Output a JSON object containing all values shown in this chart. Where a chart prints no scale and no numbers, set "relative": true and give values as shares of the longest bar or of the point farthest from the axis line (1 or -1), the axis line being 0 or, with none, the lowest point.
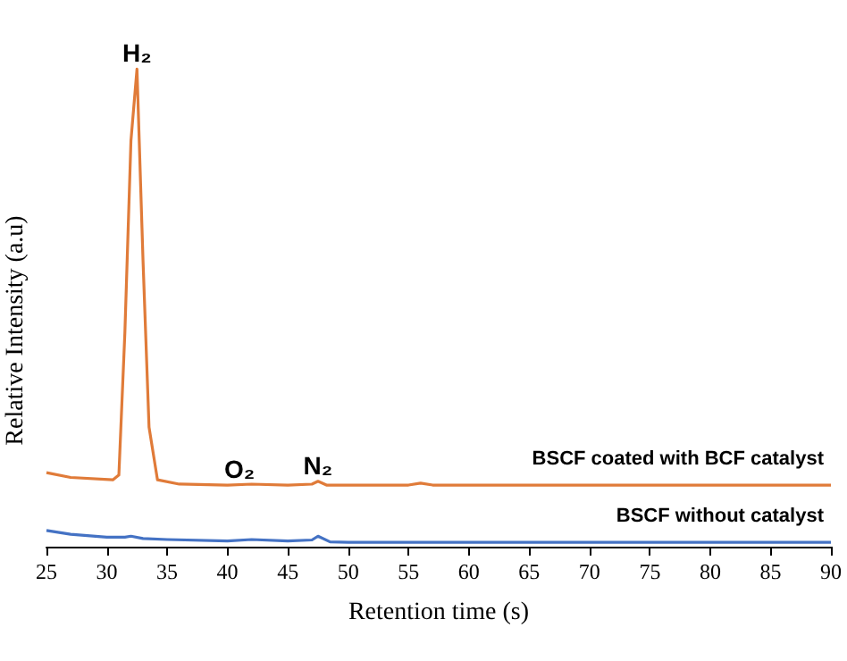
{
  "chart_data": {
    "type": "line",
    "xlabel": "Retention time (s)",
    "ylabel": "Relative Intensity (a.u)",
    "relative": true,
    "legend": false,
    "marker": "none",
    "xlim": [
      25,
      90
    ],
    "xticks": [
      25,
      30,
      35,
      40,
      45,
      50,
      55,
      60,
      65,
      70,
      75,
      80,
      85,
      90
    ],
    "series": [
      {
        "name": "BSCF coated with BCF catalyst",
        "color": "#e07b39",
        "x": [
          25,
          27,
          30.5,
          31,
          31.5,
          32,
          32.5,
          33,
          33.5,
          34.2,
          36,
          40,
          42,
          45,
          47,
          47.5,
          48.2,
          50,
          55,
          56,
          57,
          60,
          70,
          80,
          90
        ],
        "values": [
          0.155,
          0.145,
          0.14,
          0.15,
          0.45,
          0.85,
          1.0,
          0.6,
          0.25,
          0.14,
          0.131,
          0.129,
          0.131,
          0.129,
          0.131,
          0.137,
          0.129,
          0.129,
          0.129,
          0.133,
          0.129,
          0.129,
          0.129,
          0.129,
          0.129
        ]
      },
      {
        "name": "BSCF without catalyst",
        "color": "#4472c4",
        "x": [
          25,
          27,
          30,
          31.5,
          32,
          33,
          35,
          40,
          42,
          45,
          47,
          47.5,
          48.5,
          50,
          60,
          70,
          80,
          90
        ],
        "values": [
          0.034,
          0.026,
          0.02,
          0.02,
          0.022,
          0.017,
          0.015,
          0.012,
          0.015,
          0.012,
          0.014,
          0.022,
          0.01,
          0.009,
          0.009,
          0.009,
          0.009,
          0.009
        ]
      }
    ],
    "annotations": [
      {
        "text": "H₂",
        "x": 32.5,
        "y": 1.0
      },
      {
        "text": "O₂",
        "x": 41,
        "y": 0.13
      },
      {
        "text": "N₂",
        "x": 47.5,
        "y": 0.137
      }
    ]
  }
}
